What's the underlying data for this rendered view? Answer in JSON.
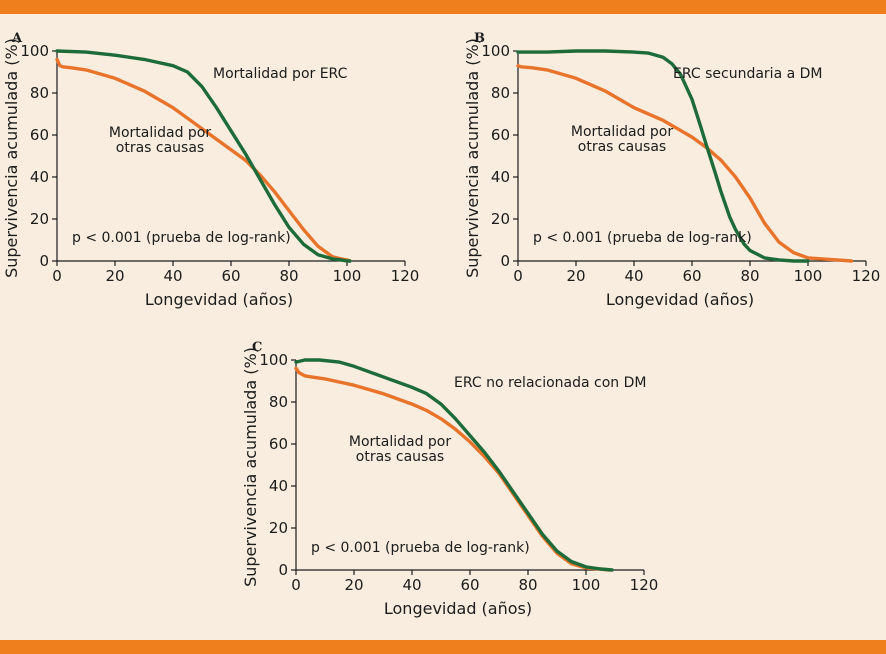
{
  "chart_data": [
    {
      "type": "line",
      "panel": "A",
      "xlabel": "Longevidad (años)",
      "ylabel": "Supervivencia acumulada (%)",
      "xlim": [
        0,
        120
      ],
      "ylim": [
        0,
        100
      ],
      "xticks": [
        "0",
        "20",
        "40",
        "60",
        "80",
        "100",
        "120"
      ],
      "yticks": [
        "0",
        "20",
        "40",
        "60",
        "80",
        "100"
      ],
      "note": "p < 0.001 (prueba de log-rank)",
      "series": [
        {
          "name": "Mortalidad por ERC",
          "label_lines": [
            "Mortalidad por ERC"
          ],
          "color": "#1e6b3a",
          "x": [
            0,
            10,
            20,
            30,
            40,
            45,
            50,
            55,
            60,
            65,
            70,
            75,
            80,
            85,
            90,
            95,
            98,
            100,
            101
          ],
          "y": [
            100,
            99.5,
            98,
            96,
            93,
            90,
            83,
            73,
            62,
            51,
            39,
            27,
            16,
            8,
            3,
            1,
            0.5,
            0,
            0
          ]
        },
        {
          "name": "Mortalidad por otras causas",
          "label_lines": [
            "Mortalidad por",
            "otras causas"
          ],
          "color": "#e8732a",
          "x": [
            0,
            1,
            2,
            5,
            10,
            20,
            30,
            40,
            50,
            60,
            65,
            70,
            75,
            80,
            85,
            90,
            95,
            98,
            100,
            101
          ],
          "y": [
            96,
            93,
            92.5,
            92,
            91,
            87,
            81,
            73,
            63,
            53,
            48,
            41,
            33,
            24,
            15,
            7,
            2,
            1,
            0.5,
            0
          ]
        }
      ]
    },
    {
      "type": "line",
      "panel": "B",
      "xlabel": "Longevidad (años)",
      "ylabel": "Supervivencia acumulada (%)",
      "xlim": [
        0,
        120
      ],
      "ylim": [
        0,
        100
      ],
      "xticks": [
        "0",
        "20",
        "40",
        "60",
        "80",
        "100",
        "120"
      ],
      "yticks": [
        "0",
        "20",
        "40",
        "60",
        "80",
        "100"
      ],
      "note": "p < 0.001 (prueba de log-rank)",
      "series": [
        {
          "name": "ERC secundaria a DM",
          "label_lines": [
            "ERC secundaria a DM"
          ],
          "color": "#1e6b3a",
          "x": [
            0,
            10,
            20,
            30,
            40,
            45,
            50,
            53,
            56,
            60,
            63,
            65,
            68,
            70,
            73,
            75,
            78,
            80,
            85,
            90,
            95,
            100
          ],
          "y": [
            99.5,
            99.5,
            100,
            100,
            99.5,
            99,
            97,
            94,
            89,
            77,
            64,
            55,
            42,
            33,
            21,
            15,
            8,
            5,
            1.5,
            0.5,
            0,
            0
          ]
        },
        {
          "name": "Mortalidad por otras causas",
          "label_lines": [
            "Mortalidad por",
            "otras causas"
          ],
          "color": "#e8732a",
          "x": [
            0,
            1,
            5,
            10,
            20,
            30,
            40,
            50,
            55,
            60,
            65,
            70,
            75,
            80,
            85,
            90,
            95,
            100,
            105,
            110,
            115
          ],
          "y": [
            93,
            92.5,
            92,
            91,
            87,
            81,
            73,
            67,
            63,
            59,
            54,
            48,
            40,
            30,
            18,
            9,
            4,
            1.5,
            1,
            0.5,
            0
          ]
        }
      ]
    },
    {
      "type": "line",
      "panel": "C",
      "xlabel": "Longevidad (años)",
      "ylabel": "Supervivencia acumulada (%)",
      "xlim": [
        0,
        120
      ],
      "ylim": [
        0,
        100
      ],
      "xticks": [
        "0",
        "20",
        "40",
        "60",
        "80",
        "100",
        "120"
      ],
      "yticks": [
        "0",
        "20",
        "40",
        "60",
        "80",
        "100"
      ],
      "note": "p < 0.001 (prueba de log-rank)",
      "series": [
        {
          "name": "ERC no relacionada con DM",
          "label_lines": [
            "ERC no relacionada con DM"
          ],
          "color": "#1e6b3a",
          "x": [
            0,
            3,
            8,
            15,
            20,
            30,
            40,
            45,
            50,
            55,
            60,
            65,
            70,
            75,
            80,
            85,
            90,
            95,
            100,
            105,
            109
          ],
          "y": [
            99,
            100,
            100,
            99,
            97,
            92,
            87,
            84,
            79,
            72,
            64,
            56,
            47,
            37,
            27,
            17,
            9,
            4,
            1.5,
            0.5,
            0
          ]
        },
        {
          "name": "Mortalidad por otras causas",
          "label_lines": [
            "Mortalidad por",
            "otras causas"
          ],
          "color": "#e8732a",
          "x": [
            0,
            1,
            3,
            5,
            10,
            20,
            30,
            40,
            45,
            50,
            55,
            60,
            65,
            70,
            75,
            80,
            85,
            90,
            95,
            100,
            105,
            108
          ],
          "y": [
            96,
            94,
            92.5,
            92,
            91,
            88,
            84,
            79,
            76,
            72,
            67,
            61,
            54,
            46,
            36,
            26,
            16,
            8,
            3,
            1,
            0.5,
            0
          ]
        }
      ]
    }
  ]
}
